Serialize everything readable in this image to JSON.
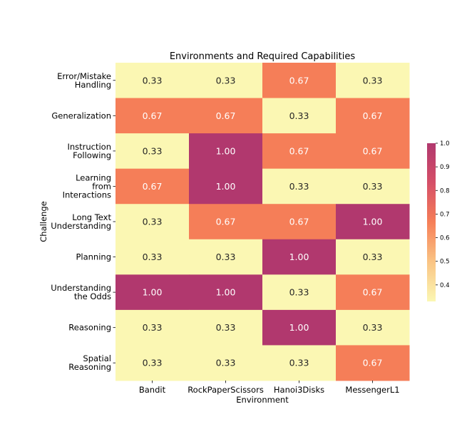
{
  "chart_data": {
    "type": "heatmap",
    "title": "Environments and Required Capabilities",
    "xlabel": "Environment",
    "ylabel": "Challenge",
    "x_categories": [
      "Bandit",
      "RockPaperScissors",
      "Hanoi3Disks",
      "MessengerL1"
    ],
    "y_categories": [
      "Error/Mistake\nHandling",
      "Generalization",
      "Instruction\nFollowing",
      "Learning\nfrom\nInteractions",
      "Long Text\nUnderstanding",
      "Planning",
      "Understanding\nthe Odds",
      "Reasoning",
      "Spatial\nReasoning"
    ],
    "values": [
      [
        0.33,
        0.33,
        0.67,
        0.33
      ],
      [
        0.67,
        0.67,
        0.33,
        0.67
      ],
      [
        0.33,
        1.0,
        0.67,
        0.67
      ],
      [
        0.67,
        1.0,
        0.33,
        0.33
      ],
      [
        0.33,
        0.67,
        0.67,
        1.0
      ],
      [
        0.33,
        0.33,
        1.0,
        0.33
      ],
      [
        1.0,
        1.0,
        0.33,
        0.67
      ],
      [
        0.33,
        0.33,
        1.0,
        0.33
      ],
      [
        0.33,
        0.33,
        0.33,
        0.67
      ]
    ],
    "value_labels": [
      [
        "0.33",
        "0.33",
        "0.67",
        "0.33"
      ],
      [
        "0.67",
        "0.67",
        "0.33",
        "0.67"
      ],
      [
        "0.33",
        "1.00",
        "0.67",
        "0.67"
      ],
      [
        "0.67",
        "1.00",
        "0.33",
        "0.33"
      ],
      [
        "0.33",
        "0.67",
        "0.67",
        "1.00"
      ],
      [
        "0.33",
        "0.33",
        "1.00",
        "0.33"
      ],
      [
        "1.00",
        "1.00",
        "0.33",
        "0.67"
      ],
      [
        "0.33",
        "0.33",
        "1.00",
        "0.33"
      ],
      [
        "0.33",
        "0.33",
        "0.33",
        "0.67"
      ]
    ],
    "colorbar": {
      "range": [
        0.33,
        1.0
      ],
      "ticks": [
        "0.4",
        "0.5",
        "0.6",
        "0.7",
        "0.8",
        "0.9",
        "1.0"
      ],
      "colormap": "magma-like (pale yellow to magenta)",
      "colors": {
        "low": "#fbf7b3",
        "mid": "#f67f58",
        "high": "#b1386e"
      }
    },
    "grid": false,
    "legend": "colorbar right"
  }
}
